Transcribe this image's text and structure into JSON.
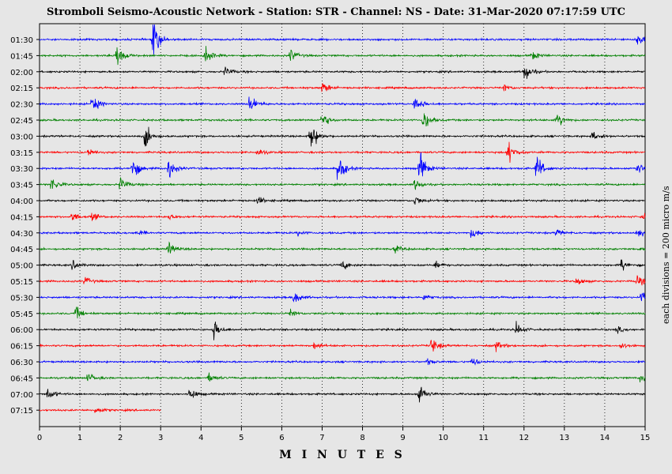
{
  "title": "Stromboli Seismo-Acoustic Network - Station: STR - Channel: NS - Date: 31-Mar-2020 07:17:59 UTC",
  "scale_note": "each divisions = 200 micro m/s",
  "chart_data": {
    "type": "line",
    "title": "Stromboli Seismo-Acoustic Network - Station: STR - Channel: NS - Date: 31-Mar-2020 07:17:59 UTC",
    "xlabel": "M I N U T E S",
    "xlim": [
      0,
      15
    ],
    "x_ticks": [
      "0",
      "1",
      "2",
      "3",
      "4",
      "5",
      "6",
      "7",
      "8",
      "9",
      "10",
      "11",
      "12",
      "13",
      "14",
      "15"
    ],
    "grid": true,
    "color_cycle": [
      "#0000ff",
      "#008000",
      "#000000",
      "#ff0000"
    ],
    "series": [
      {
        "time": "01:30",
        "color": "#0000ff",
        "end_minute": 15,
        "events": [
          [
            2.8,
            45
          ],
          [
            14.8,
            14
          ]
        ]
      },
      {
        "time": "01:45",
        "color": "#008000",
        "end_minute": 15,
        "events": [
          [
            1.9,
            28
          ],
          [
            4.1,
            22
          ],
          [
            6.2,
            14
          ],
          [
            12.2,
            10
          ]
        ]
      },
      {
        "time": "02:00",
        "color": "#000000",
        "end_minute": 15,
        "events": [
          [
            4.6,
            10
          ],
          [
            12.0,
            22
          ]
        ]
      },
      {
        "time": "02:15",
        "color": "#ff0000",
        "end_minute": 15,
        "events": [
          [
            7.0,
            14
          ],
          [
            11.5,
            8
          ]
        ]
      },
      {
        "time": "02:30",
        "color": "#0000ff",
        "end_minute": 15,
        "events": [
          [
            1.3,
            20
          ],
          [
            5.2,
            24
          ],
          [
            9.3,
            20
          ]
        ]
      },
      {
        "time": "02:45",
        "color": "#008000",
        "end_minute": 15,
        "events": [
          [
            7.0,
            16
          ],
          [
            9.5,
            22
          ],
          [
            12.8,
            18
          ]
        ]
      },
      {
        "time": "03:00",
        "color": "#000000",
        "end_minute": 15,
        "events": [
          [
            2.6,
            26
          ],
          [
            6.7,
            34
          ],
          [
            13.7,
            10
          ]
        ]
      },
      {
        "time": "03:15",
        "color": "#ff0000",
        "end_minute": 15,
        "events": [
          [
            1.2,
            8
          ],
          [
            5.4,
            8
          ],
          [
            11.6,
            22
          ]
        ]
      },
      {
        "time": "03:30",
        "color": "#0000ff",
        "end_minute": 15,
        "events": [
          [
            2.3,
            24
          ],
          [
            3.2,
            22
          ],
          [
            7.4,
            30
          ],
          [
            9.4,
            36
          ],
          [
            12.3,
            30
          ],
          [
            14.8,
            14
          ]
        ]
      },
      {
        "time": "03:45",
        "color": "#008000",
        "end_minute": 15,
        "events": [
          [
            0.3,
            16
          ],
          [
            2.0,
            16
          ],
          [
            9.3,
            12
          ]
        ]
      },
      {
        "time": "04:00",
        "color": "#000000",
        "end_minute": 15,
        "events": [
          [
            5.4,
            8
          ],
          [
            9.3,
            10
          ]
        ]
      },
      {
        "time": "04:15",
        "color": "#ff0000",
        "end_minute": 15,
        "events": [
          [
            0.8,
            10
          ],
          [
            1.3,
            8
          ],
          [
            3.2,
            6
          ],
          [
            14.9,
            8
          ]
        ]
      },
      {
        "time": "04:30",
        "color": "#0000ff",
        "end_minute": 15,
        "events": [
          [
            2.4,
            8
          ],
          [
            6.4,
            6
          ],
          [
            10.7,
            12
          ],
          [
            12.8,
            8
          ],
          [
            14.8,
            10
          ]
        ]
      },
      {
        "time": "04:45",
        "color": "#008000",
        "end_minute": 15,
        "events": [
          [
            3.2,
            14
          ],
          [
            8.8,
            8
          ],
          [
            14.9,
            8
          ]
        ]
      },
      {
        "time": "05:00",
        "color": "#000000",
        "end_minute": 15,
        "events": [
          [
            0.8,
            10
          ],
          [
            7.5,
            10
          ],
          [
            9.8,
            6
          ],
          [
            14.4,
            12
          ]
        ]
      },
      {
        "time": "05:15",
        "color": "#ff0000",
        "end_minute": 15,
        "events": [
          [
            1.1,
            10
          ],
          [
            13.3,
            8
          ],
          [
            14.8,
            12
          ]
        ]
      },
      {
        "time": "05:30",
        "color": "#0000ff",
        "end_minute": 15,
        "events": [
          [
            6.3,
            16
          ],
          [
            9.5,
            6
          ],
          [
            14.9,
            14
          ]
        ]
      },
      {
        "time": "05:45",
        "color": "#008000",
        "end_minute": 15,
        "events": [
          [
            0.9,
            12
          ],
          [
            6.2,
            8
          ]
        ]
      },
      {
        "time": "06:00",
        "color": "#000000",
        "end_minute": 15,
        "events": [
          [
            4.3,
            22
          ],
          [
            11.8,
            14
          ],
          [
            14.3,
            6
          ]
        ]
      },
      {
        "time": "06:15",
        "color": "#ff0000",
        "end_minute": 15,
        "events": [
          [
            6.8,
            8
          ],
          [
            9.7,
            18
          ],
          [
            11.3,
            10
          ],
          [
            14.4,
            6
          ]
        ]
      },
      {
        "time": "06:30",
        "color": "#0000ff",
        "end_minute": 15,
        "events": [
          [
            10.7,
            10
          ],
          [
            9.6,
            6
          ]
        ]
      },
      {
        "time": "06:45",
        "color": "#008000",
        "end_minute": 15,
        "events": [
          [
            1.2,
            10
          ],
          [
            4.2,
            10
          ],
          [
            14.9,
            10
          ]
        ]
      },
      {
        "time": "07:00",
        "color": "#000000",
        "end_minute": 15,
        "events": [
          [
            0.2,
            12
          ],
          [
            3.7,
            16
          ],
          [
            9.4,
            22
          ]
        ]
      },
      {
        "time": "07:15",
        "color": "#ff0000",
        "end_minute": 3.0,
        "events": [
          [
            1.4,
            8
          ]
        ]
      }
    ]
  }
}
